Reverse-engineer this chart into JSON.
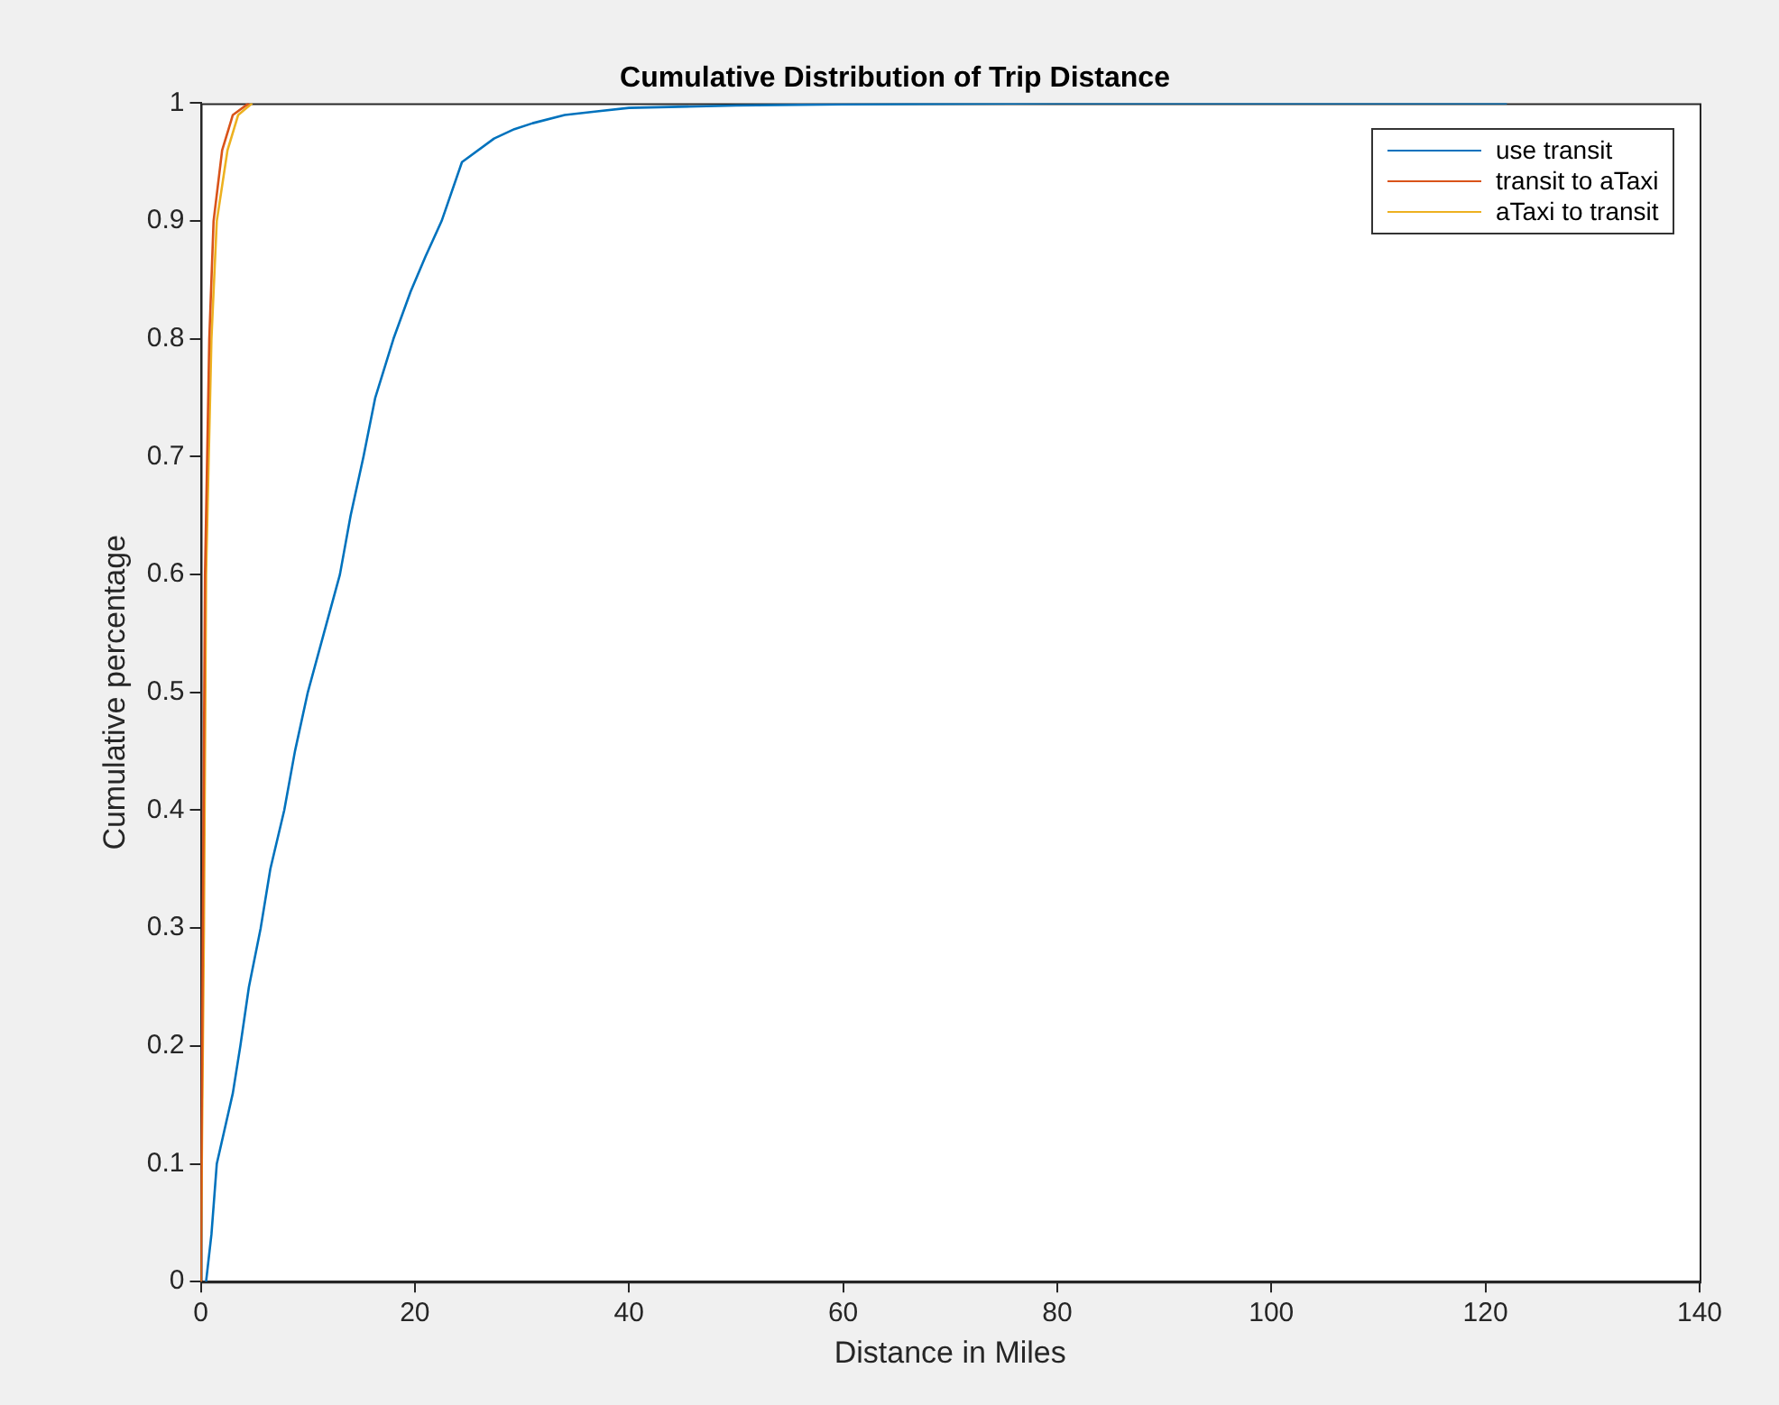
{
  "chart_data": {
    "type": "line",
    "title": "Cumulative Distribution of Trip Distance",
    "xlabel": "Distance in Miles",
    "ylabel": "Cumulative percentage",
    "xlim": [
      0,
      140
    ],
    "xticks": [
      0,
      20,
      40,
      60,
      80,
      100,
      120,
      140
    ],
    "ylim": [
      0,
      1
    ],
    "yticks": [
      0,
      0.1,
      0.2,
      0.3,
      0.4,
      0.5,
      0.6,
      0.7,
      0.8,
      0.9,
      1
    ],
    "grid": false,
    "legend": "top right",
    "marker": "none",
    "line_style": "solid",
    "series": [
      {
        "name": "use transit",
        "color": "#0072bd",
        "x": [
          0.5,
          1,
          1.5,
          3,
          3.7,
          4.5,
          5.6,
          6.5,
          7.8,
          8.8,
          10,
          11.5,
          13,
          14,
          15.2,
          16.3,
          18,
          19.6,
          21,
          22.5,
          24.4,
          27.4,
          29.3,
          31,
          34,
          37,
          40,
          50,
          60,
          80,
          122
        ],
        "values": [
          0,
          0.04,
          0.1,
          0.16,
          0.2,
          0.25,
          0.3,
          0.35,
          0.4,
          0.45,
          0.5,
          0.55,
          0.6,
          0.65,
          0.7,
          0.75,
          0.8,
          0.84,
          0.87,
          0.9,
          0.95,
          0.97,
          0.978,
          0.983,
          0.99,
          0.993,
          0.996,
          0.998,
          0.999,
          1,
          1
        ]
      },
      {
        "name": "transit to aTaxi",
        "color": "#d95319",
        "x": [
          0,
          0.2,
          0.4,
          0.8,
          1.2,
          2,
          3,
          4.5
        ],
        "values": [
          0,
          0.3,
          0.6,
          0.8,
          0.9,
          0.96,
          0.99,
          1
        ]
      },
      {
        "name": "aTaxi to transit",
        "color": "#edb120",
        "x": [
          0,
          0.3,
          0.5,
          1,
          1.5,
          2.5,
          3.5,
          4.8
        ],
        "values": [
          0,
          0.3,
          0.6,
          0.8,
          0.9,
          0.96,
          0.99,
          1
        ]
      }
    ]
  }
}
